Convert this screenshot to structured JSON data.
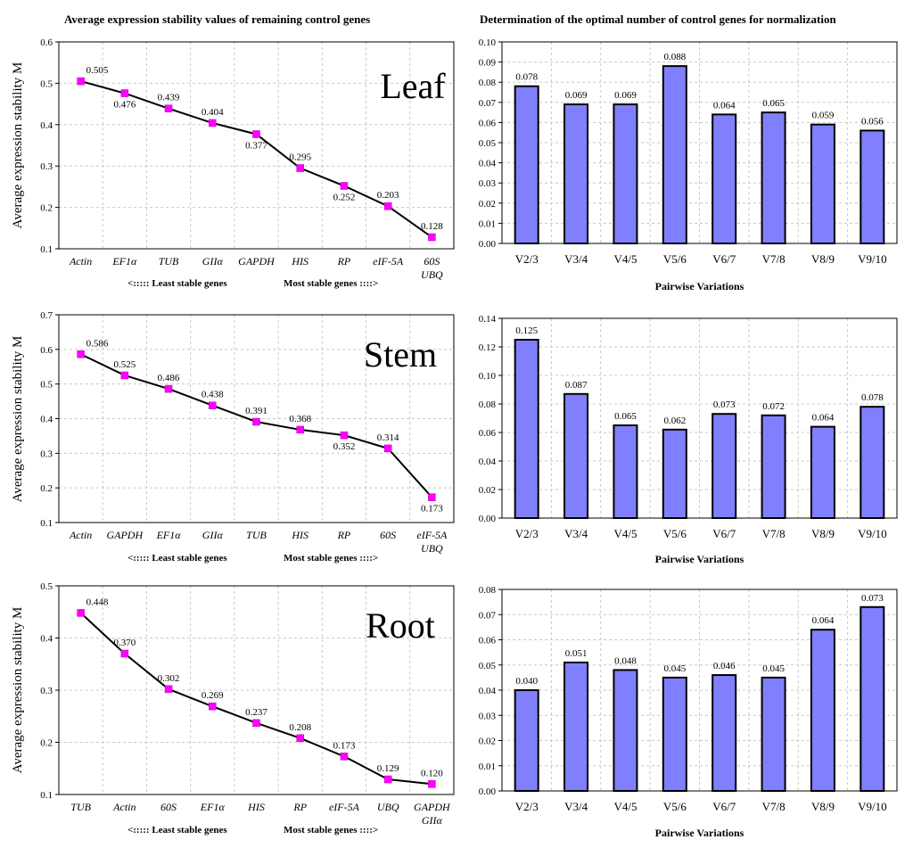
{
  "headers": {
    "left": "Average expression stability values of remaining control genes",
    "right": "Determination of the optimal number of control genes for normalization"
  },
  "chart_data": [
    {
      "id": "leaf-line",
      "type": "line",
      "tissue": "Leaf",
      "ylabel": "Average expression stability M",
      "ylim": [
        0.1,
        0.6
      ],
      "yticks": [
        "0.1",
        "0.2",
        "0.3",
        "0.4",
        "0.5",
        "0.6"
      ],
      "categories": [
        "Actin",
        "EF1α",
        "TUB",
        "GIIα",
        "GAPDH",
        "HIS",
        "RP",
        "eIF-5A",
        "60S\nUBQ"
      ],
      "values": [
        0.505,
        0.476,
        0.439,
        0.404,
        0.377,
        0.295,
        0.252,
        0.203,
        0.128
      ],
      "labels": [
        "0.505",
        "0.476",
        "0.439",
        "0.404",
        "0.377",
        "0.295",
        "0.252",
        "0.203",
        "0.128"
      ],
      "label_pos": [
        "above",
        "below",
        "above",
        "above",
        "below",
        "above",
        "below",
        "above",
        "above"
      ],
      "xcaption_left": "<:::::  Least stable genes",
      "xcaption_right": "Most stable genes ::::>",
      "grid": true
    },
    {
      "id": "leaf-bar",
      "type": "bar",
      "xlabel": "Pairwise Variations",
      "ylim": [
        0,
        0.1
      ],
      "yticks": [
        "0.00",
        "0.01",
        "0.02",
        "0.03",
        "0.04",
        "0.05",
        "0.06",
        "0.07",
        "0.08",
        "0.09",
        "0.10"
      ],
      "categories": [
        "V2/3",
        "V3/4",
        "V4/5",
        "V5/6",
        "V6/7",
        "V7/8",
        "V8/9",
        "V9/10"
      ],
      "values": [
        0.078,
        0.069,
        0.069,
        0.088,
        0.064,
        0.065,
        0.059,
        0.056
      ],
      "labels": [
        "0.078",
        "0.069",
        "0.069",
        "0.088",
        "0.064",
        "0.065",
        "0.059",
        "0.056"
      ],
      "grid": true
    },
    {
      "id": "stem-line",
      "type": "line",
      "tissue": "Stem",
      "ylabel": "Average expression stability M",
      "ylim": [
        0.1,
        0.7
      ],
      "yticks": [
        "0.1",
        "0.2",
        "0.3",
        "0.4",
        "0.5",
        "0.6",
        "0.7"
      ],
      "categories": [
        "Actin",
        "GAPDH",
        "EF1α",
        "GIIα",
        "TUB",
        "HIS",
        "RP",
        "60S",
        "eIF-5A\nUBQ"
      ],
      "values": [
        0.586,
        0.525,
        0.486,
        0.438,
        0.391,
        0.368,
        0.352,
        0.314,
        0.173
      ],
      "labels": [
        "0.586",
        "0.525",
        "0.486",
        "0.438",
        "0.391",
        "0.368",
        "0.352",
        "0.314",
        "0.173"
      ],
      "label_pos": [
        "above",
        "above",
        "above",
        "above",
        "above",
        "above",
        "below",
        "above",
        "below"
      ],
      "xcaption_left": "<:::::  Least stable genes",
      "xcaption_right": "Most stable genes ::::>",
      "grid": true
    },
    {
      "id": "stem-bar",
      "type": "bar",
      "xlabel": "Pairwise Variations",
      "ylim": [
        0,
        0.14
      ],
      "yticks": [
        "0.00",
        "0.02",
        "0.04",
        "0.06",
        "0.08",
        "0.10",
        "0.12",
        "0.14"
      ],
      "categories": [
        "V2/3",
        "V3/4",
        "V4/5",
        "V5/6",
        "V6/7",
        "V7/8",
        "V8/9",
        "V9/10"
      ],
      "values": [
        0.125,
        0.087,
        0.065,
        0.062,
        0.073,
        0.072,
        0.064,
        0.078
      ],
      "labels": [
        "0.125",
        "0.087",
        "0.065",
        "0.062",
        "0.073",
        "0.072",
        "0.064",
        "0.078"
      ],
      "grid": true
    },
    {
      "id": "root-line",
      "type": "line",
      "tissue": "Root",
      "ylabel": "Average expression stability M",
      "ylim": [
        0.1,
        0.5
      ],
      "yticks": [
        "0.1",
        "0.2",
        "0.3",
        "0.4",
        "0.5"
      ],
      "categories": [
        "TUB",
        "Actin",
        "60S",
        "EF1α",
        "HIS",
        "RP",
        "eIF-5A",
        "UBQ",
        "GAPDH\nGIIα"
      ],
      "values": [
        0.448,
        0.37,
        0.302,
        0.269,
        0.237,
        0.208,
        0.173,
        0.129,
        0.12
      ],
      "labels": [
        "0.448",
        "0.370",
        "0.302",
        "0.269",
        "0.237",
        "0.208",
        "0.173",
        "0.129",
        "0.120"
      ],
      "label_pos": [
        "above",
        "above",
        "above",
        "above",
        "above",
        "above",
        "above",
        "above",
        "above"
      ],
      "xcaption_left": "<:::::  Least stable genes",
      "xcaption_right": "Most stable genes ::::>",
      "grid": true
    },
    {
      "id": "root-bar",
      "type": "bar",
      "xlabel": "Pairwise Variations",
      "ylim": [
        0,
        0.08
      ],
      "yticks": [
        "0.00",
        "0.01",
        "0.02",
        "0.03",
        "0.04",
        "0.05",
        "0.06",
        "0.07",
        "0.08"
      ],
      "categories": [
        "V2/3",
        "V3/4",
        "V4/5",
        "V5/6",
        "V6/7",
        "V7/8",
        "V8/9",
        "V9/10"
      ],
      "values": [
        0.04,
        0.051,
        0.048,
        0.045,
        0.046,
        0.045,
        0.064,
        0.073
      ],
      "labels": [
        "0.040",
        "0.051",
        "0.048",
        "0.045",
        "0.046",
        "0.045",
        "0.064",
        "0.073"
      ],
      "grid": true
    }
  ],
  "colors": {
    "marker": "#ff00ff",
    "line": "#000000",
    "bar_fill": "#8080ff",
    "bar_stroke": "#000000",
    "grid": "#c8c8c8"
  }
}
